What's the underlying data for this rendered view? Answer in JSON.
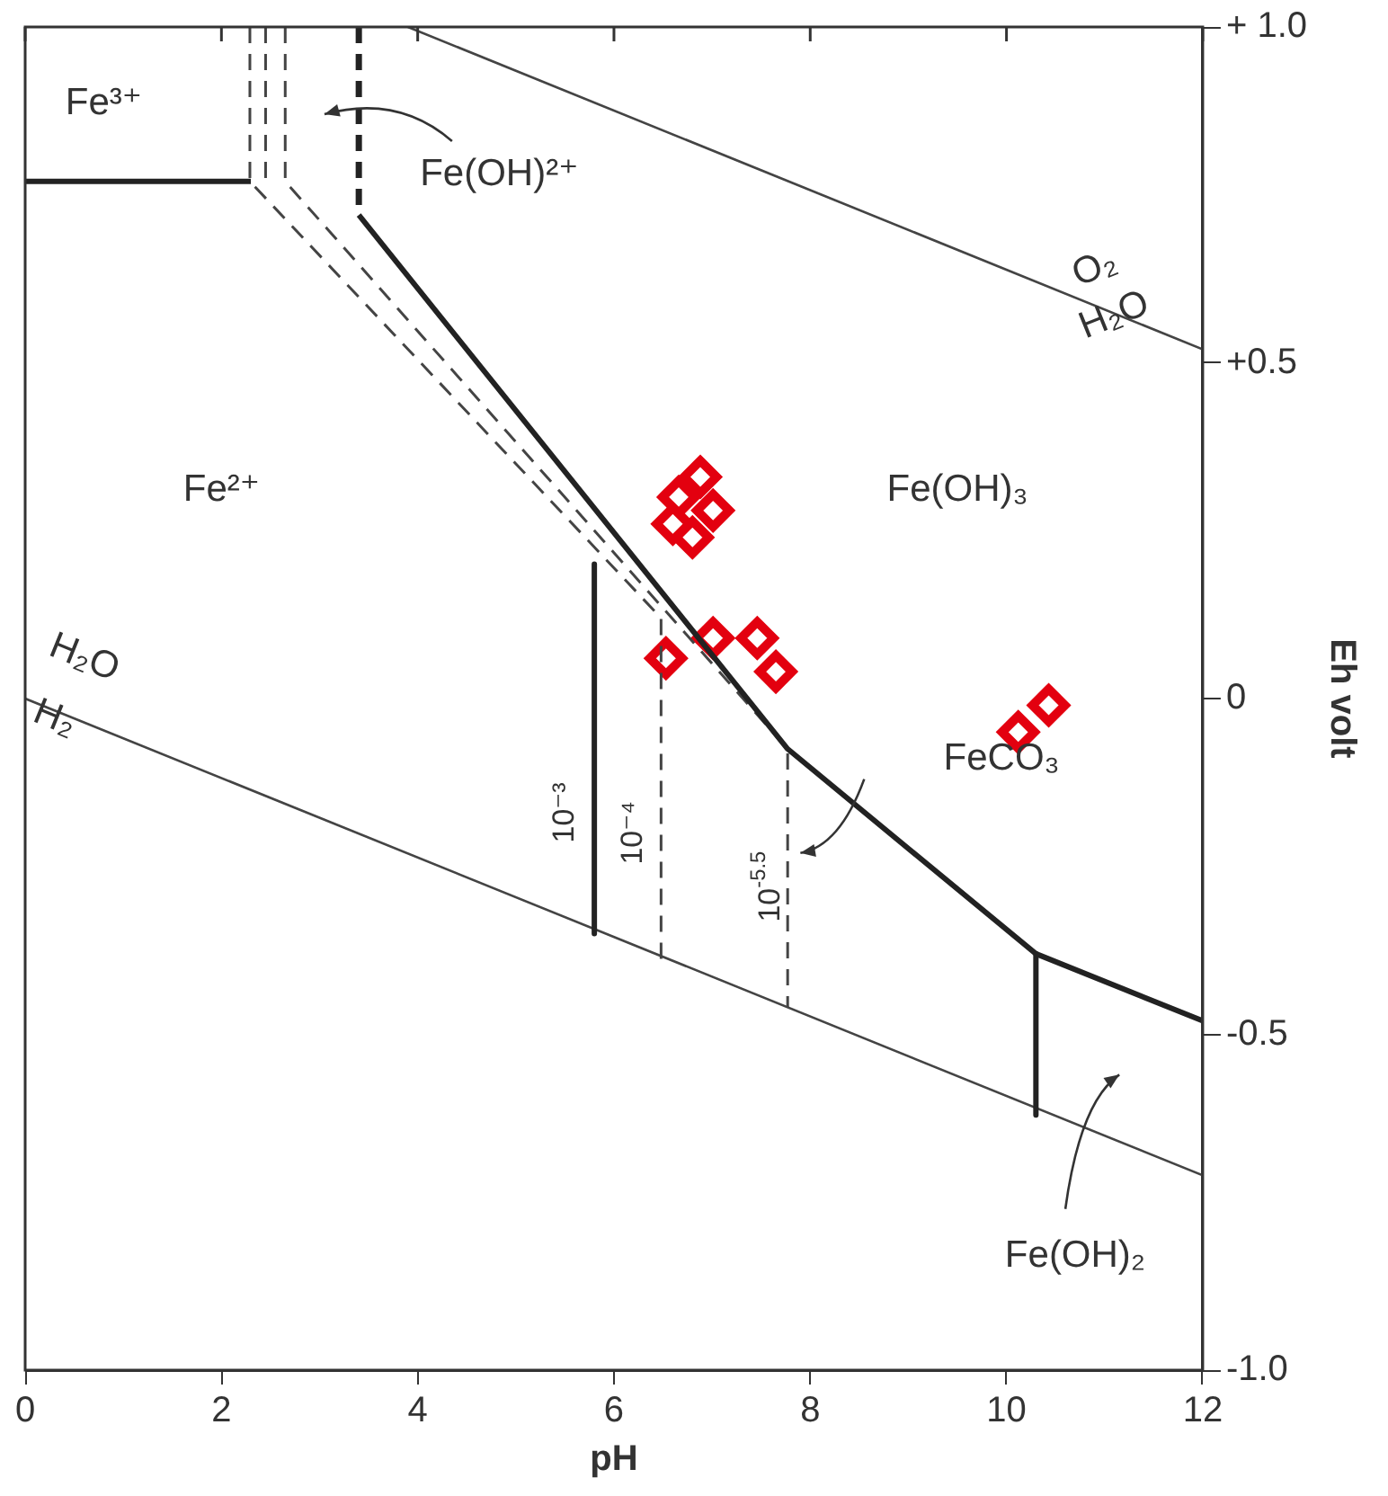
{
  "chart_data": {
    "type": "scatter",
    "xlabel": "pH",
    "ylabel": "Eh volt",
    "xlim": [
      0,
      12
    ],
    "xticks": [
      0,
      2,
      4,
      6,
      8,
      10,
      12
    ],
    "ylim": [
      -1.0,
      1.0
    ],
    "yticks": [
      {
        "value": 1.0,
        "label": "+ 1.0"
      },
      {
        "value": 0.5,
        "label": "+0.5"
      },
      0,
      {
        "value": -0.5,
        "label": "-0.5"
      },
      {
        "value": -1.0,
        "label": "-1.0"
      }
    ],
    "grid": false,
    "legend": false,
    "series": [
      {
        "type": "line",
        "color": "#222222",
        "x": [
          0,
          2.3
        ],
        "values": [
          0.77,
          0.77
        ],
        "line_style": "solid"
      },
      {
        "type": "line",
        "color": "#222222",
        "x": [
          3.4,
          3.4
        ],
        "values": [
          1.0,
          0.72
        ],
        "line_style": "dashed"
      },
      {
        "type": "line",
        "color": "#222222",
        "x": [
          3.4,
          7.77,
          10.3,
          12
        ],
        "values": [
          0.72,
          -0.075,
          -0.38,
          -0.48
        ],
        "line_style": "solid"
      },
      {
        "type": "line",
        "color": "#222222",
        "x": [
          10.3,
          10.3
        ],
        "values": [
          -0.38,
          -0.62
        ],
        "line_style": "solid"
      },
      {
        "type": "line",
        "color": "#222222",
        "x": [
          5.8,
          5.8
        ],
        "values": [
          0.2,
          -0.35
        ],
        "line_style": "solid"
      },
      {
        "type": "line",
        "color": "#444444",
        "x": [
          2.29,
          2.29,
          6.48,
          6.48
        ],
        "values": [
          1.0,
          0.77,
          0.12,
          -0.39
        ],
        "line_style": "dashed"
      },
      {
        "type": "line",
        "color": "#444444",
        "x": [
          2.45,
          2.45
        ],
        "values": [
          1.0,
          0.77
        ],
        "line_style": "dashed"
      },
      {
        "type": "line",
        "color": "#444444",
        "x": [
          2.65,
          2.65,
          7.77,
          7.77
        ],
        "values": [
          1.0,
          0.77,
          -0.075,
          -0.46
        ],
        "line_style": "dashed"
      },
      {
        "type": "line",
        "color": "#444444",
        "x": [
          0,
          12
        ],
        "values": [
          0,
          -0.71
        ],
        "line_style": "solid"
      },
      {
        "type": "line",
        "color": "#444444",
        "x": [
          3.9,
          12
        ],
        "values": [
          1.0,
          0.52
        ],
        "line_style": "solid"
      },
      {
        "type": "scatter",
        "marker": "diamond",
        "color": "#e3000f",
        "x": [
          6.88,
          6.66,
          7.01,
          6.6,
          6.8,
          6.53,
          7.01,
          7.46,
          7.65,
          10.12,
          10.43
        ],
        "values": [
          0.33,
          0.3,
          0.28,
          0.26,
          0.24,
          0.06,
          0.09,
          0.09,
          0.04,
          -0.05,
          -0.01
        ]
      }
    ],
    "annotations": [
      "Fe³⁺",
      "Fe(OH)²⁺",
      "O₂",
      {
        "text": "H₂O",
        "x": 11.1,
        "y": 0.57
      },
      "Fe²⁺",
      "Fe(OH)₃",
      "H₂O",
      {
        "text": "H₂",
        "x": 0.3,
        "y": -0.03
      },
      "10⁻³",
      "10⁻⁴",
      "10$^{-5.5}$",
      "FeCO₃",
      "Fe(OH)₂"
    ]
  }
}
